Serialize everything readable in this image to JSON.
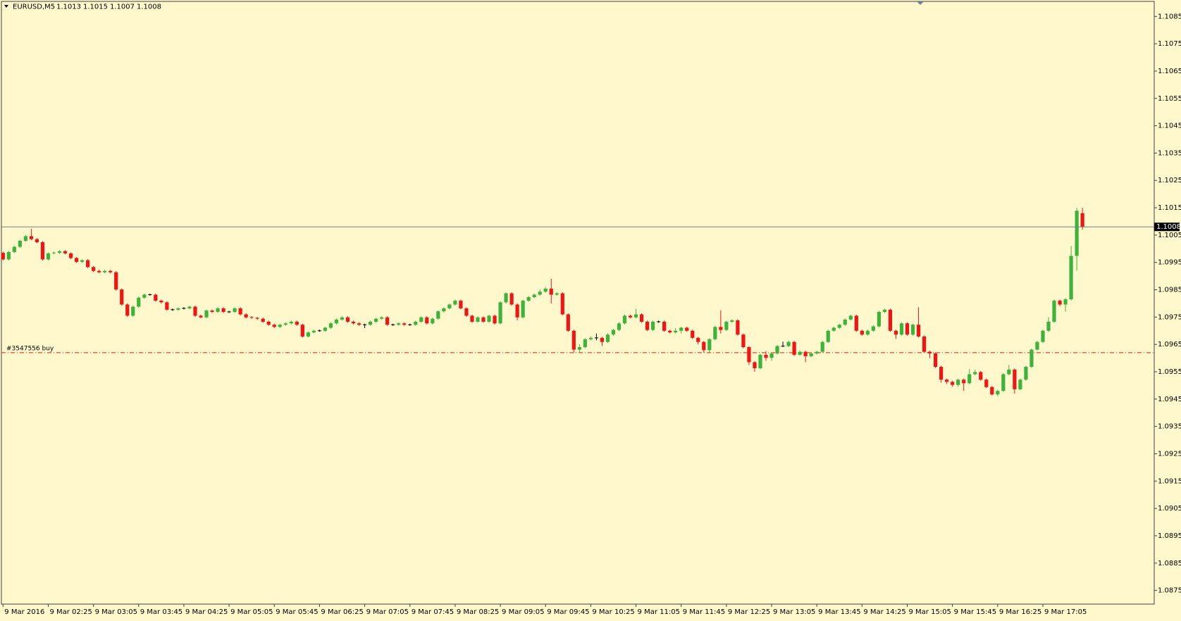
{
  "chart_data": {
    "type": "candlestick",
    "symbol": "EURUSD,M5",
    "up_color": "#3cb43c",
    "down_color": "#f01414",
    "background": "#fff8cc",
    "ylim": [
      1.087,
      1.1091
    ],
    "yticks": [
      1.0875,
      1.0885,
      1.0895,
      1.0905,
      1.0915,
      1.0925,
      1.0935,
      1.0945,
      1.0955,
      1.0965,
      1.0975,
      1.0985,
      1.0995,
      1.1005,
      1.1015,
      1.1025,
      1.1035,
      1.1045,
      1.1055,
      1.1065,
      1.1075,
      1.1085
    ],
    "current_price": 1.1008,
    "order": {
      "label": "#3547556 buy",
      "price": 1.0962
    },
    "categories": [
      "9 Mar 2016",
      null,
      null,
      null,
      null,
      null,
      null,
      null,
      "9 Mar 02:25",
      null,
      null,
      null,
      null,
      null,
      null,
      null,
      "9 Mar 03:05",
      null,
      null,
      null,
      null,
      null,
      null,
      null,
      "9 Mar 03:45",
      null,
      null,
      null,
      null,
      null,
      null,
      null,
      "9 Mar 04:25",
      null,
      null,
      null,
      null,
      null,
      null,
      null,
      "9 Mar 05:05",
      null,
      null,
      null,
      null,
      null,
      null,
      null,
      "9 Mar 05:45",
      null,
      null,
      null,
      null,
      null,
      null,
      null,
      "9 Mar 06:25",
      null,
      null,
      null,
      null,
      null,
      null,
      null,
      "9 Mar 07:05",
      null,
      null,
      null,
      null,
      null,
      null,
      null,
      "9 Mar 07:45",
      null,
      null,
      null,
      null,
      null,
      null,
      null,
      "9 Mar 08:25",
      null,
      null,
      null,
      null,
      null,
      null,
      null,
      "9 Mar 09:05",
      null,
      null,
      null,
      null,
      null,
      null,
      null,
      "9 Mar 09:45",
      null,
      null,
      null,
      null,
      null,
      null,
      null,
      "9 Mar 10:25",
      null,
      null,
      null,
      null,
      null,
      null,
      null,
      "9 Mar 11:05",
      null,
      null,
      null,
      null,
      null,
      null,
      null,
      "9 Mar 11:45",
      null,
      null,
      null,
      null,
      null,
      null,
      null,
      "9 Mar 12:25",
      null,
      null,
      null,
      null,
      null,
      null,
      null,
      "9 Mar 13:05",
      null,
      null,
      null,
      null,
      null,
      null,
      null,
      "9 Mar 13:45",
      null,
      null,
      null,
      null,
      null,
      null,
      null,
      "9 Mar 14:25",
      null,
      null,
      null,
      null,
      null,
      null,
      null,
      "9 Mar 15:05",
      null,
      null,
      null,
      null,
      null,
      null,
      null,
      "9 Mar 15:45",
      null,
      null,
      null,
      null,
      null,
      null,
      null,
      "9 Mar 16:25",
      null,
      null,
      null,
      null,
      null,
      null,
      null,
      "9 Mar 17:05",
      null,
      null,
      null,
      null,
      null,
      null,
      null
    ],
    "ohlc": [
      [
        1.09985,
        1.09989,
        1.09957,
        1.09961
      ],
      [
        1.09961,
        1.09992,
        1.09957,
        1.09988
      ],
      [
        1.09988,
        1.10011,
        1.09984,
        1.10007
      ],
      [
        1.10007,
        1.10033,
        1.10003,
        1.10029
      ],
      [
        1.10029,
        1.1005,
        1.10025,
        1.10046
      ],
      [
        1.10046,
        1.10073,
        1.10031,
        1.10035
      ],
      [
        1.10035,
        1.10039,
        1.1002,
        1.10024
      ],
      [
        1.10024,
        1.10028,
        1.09957,
        1.09961
      ],
      [
        1.09961,
        1.09987,
        1.09957,
        1.09983
      ],
      [
        1.09983,
        1.09989,
        1.09979,
        1.09985
      ],
      [
        1.09985,
        1.09995,
        1.09981,
        1.09991
      ],
      [
        1.09991,
        1.09995,
        1.09979,
        1.09983
      ],
      [
        1.09983,
        1.09987,
        1.09962,
        1.09966
      ],
      [
        1.09966,
        1.0997,
        1.09948,
        1.09952
      ],
      [
        1.09952,
        1.09962,
        1.09948,
        1.09958
      ],
      [
        1.09958,
        1.09962,
        1.09929,
        1.09933
      ],
      [
        1.09933,
        1.09937,
        1.09915,
        1.09919
      ],
      [
        1.09919,
        1.09923,
        1.0991,
        1.09914
      ],
      [
        1.09914,
        1.09923,
        1.0991,
        1.09919
      ],
      [
        1.09919,
        1.09923,
        1.0991,
        1.09914
      ],
      [
        1.09914,
        1.09918,
        1.09847,
        1.09851
      ],
      [
        1.09851,
        1.09855,
        1.09792,
        1.09796
      ],
      [
        1.09796,
        1.098,
        1.09751,
        1.09755
      ],
      [
        1.09755,
        1.09792,
        1.09751,
        1.09788
      ],
      [
        1.09788,
        1.09825,
        1.09784,
        1.09821
      ],
      [
        1.09821,
        1.09836,
        1.09817,
        1.09832
      ],
      [
        1.09832,
        1.09836,
        1.09828,
        1.09832
      ],
      [
        1.09832,
        1.09836,
        1.09806,
        1.0981
      ],
      [
        1.0981,
        1.09814,
        1.098,
        1.09804
      ],
      [
        1.09804,
        1.09808,
        1.09773,
        1.09777
      ],
      [
        1.09777,
        1.09781,
        1.09773,
        1.09777
      ],
      [
        1.09777,
        1.09786,
        1.09773,
        1.09782
      ],
      [
        1.09782,
        1.09786,
        1.09778,
        1.09782
      ],
      [
        1.09782,
        1.09792,
        1.09778,
        1.09788
      ],
      [
        1.09788,
        1.09792,
        1.09751,
        1.09755
      ],
      [
        1.09755,
        1.09759,
        1.09745,
        1.09749
      ],
      [
        1.09749,
        1.09778,
        1.09745,
        1.09774
      ],
      [
        1.09774,
        1.09778,
        1.09765,
        1.09769
      ],
      [
        1.09769,
        1.09786,
        1.09765,
        1.09782
      ],
      [
        1.09782,
        1.09786,
        1.09765,
        1.09769
      ],
      [
        1.09769,
        1.09773,
        1.09765,
        1.09769
      ],
      [
        1.09769,
        1.09786,
        1.09765,
        1.09782
      ],
      [
        1.09782,
        1.09786,
        1.09756,
        1.0976
      ],
      [
        1.0976,
        1.09764,
        1.09745,
        1.09749
      ],
      [
        1.09749,
        1.09753,
        1.09743,
        1.09747
      ],
      [
        1.09747,
        1.09751,
        1.0974,
        1.09744
      ],
      [
        1.09744,
        1.09748,
        1.09729,
        1.09733
      ],
      [
        1.09733,
        1.09737,
        1.09718,
        1.09722
      ],
      [
        1.09722,
        1.09726,
        1.0971,
        1.09714
      ],
      [
        1.09714,
        1.09726,
        1.0971,
        1.09722
      ],
      [
        1.09722,
        1.09731,
        1.09718,
        1.09727
      ],
      [
        1.09727,
        1.09737,
        1.09723,
        1.09733
      ],
      [
        1.09733,
        1.09737,
        1.09718,
        1.09722
      ],
      [
        1.09722,
        1.09726,
        1.09675,
        1.09679
      ],
      [
        1.09679,
        1.09698,
        1.09675,
        1.09694
      ],
      [
        1.09694,
        1.09704,
        1.0969,
        1.097
      ],
      [
        1.097,
        1.09704,
        1.09696,
        1.097
      ],
      [
        1.097,
        1.09715,
        1.09696,
        1.09711
      ],
      [
        1.09711,
        1.09731,
        1.09707,
        1.09727
      ],
      [
        1.09727,
        1.09745,
        1.09723,
        1.09741
      ],
      [
        1.09741,
        1.09753,
        1.09737,
        1.09749
      ],
      [
        1.09749,
        1.09753,
        1.09729,
        1.09733
      ],
      [
        1.09733,
        1.09737,
        1.09723,
        1.09727
      ],
      [
        1.09727,
        1.09731,
        1.09718,
        1.09722
      ],
      [
        1.09722,
        1.09726,
        1.0971,
        1.09722
      ],
      [
        1.09722,
        1.09737,
        1.09718,
        1.09733
      ],
      [
        1.09733,
        1.09748,
        1.09729,
        1.09744
      ],
      [
        1.09744,
        1.09753,
        1.0974,
        1.09749
      ],
      [
        1.09749,
        1.09753,
        1.09718,
        1.09722
      ],
      [
        1.09722,
        1.09726,
        1.09718,
        1.09722
      ],
      [
        1.09722,
        1.09731,
        1.09718,
        1.09727
      ],
      [
        1.09727,
        1.09731,
        1.09718,
        1.09722
      ],
      [
        1.09722,
        1.09726,
        1.09718,
        1.09722
      ],
      [
        1.09722,
        1.09737,
        1.09718,
        1.09733
      ],
      [
        1.09733,
        1.09753,
        1.09729,
        1.09749
      ],
      [
        1.09749,
        1.09753,
        1.09723,
        1.09727
      ],
      [
        1.09727,
        1.09748,
        1.09723,
        1.09744
      ],
      [
        1.09744,
        1.09775,
        1.0974,
        1.09771
      ],
      [
        1.09771,
        1.09786,
        1.09767,
        1.09782
      ],
      [
        1.09782,
        1.098,
        1.09778,
        1.09796
      ],
      [
        1.09796,
        1.09814,
        1.09792,
        1.0981
      ],
      [
        1.0981,
        1.09814,
        1.09778,
        1.09782
      ],
      [
        1.09782,
        1.09786,
        1.09751,
        1.09755
      ],
      [
        1.09755,
        1.09759,
        1.09729,
        1.09733
      ],
      [
        1.09733,
        1.09753,
        1.09729,
        1.09749
      ],
      [
        1.09749,
        1.09753,
        1.09729,
        1.09733
      ],
      [
        1.09733,
        1.09759,
        1.09729,
        1.09755
      ],
      [
        1.09755,
        1.09759,
        1.09723,
        1.09727
      ],
      [
        1.09727,
        1.09808,
        1.09723,
        1.09804
      ],
      [
        1.09804,
        1.09841,
        1.098,
        1.09837
      ],
      [
        1.09837,
        1.09841,
        1.09792,
        1.09796
      ],
      [
        1.09796,
        1.098,
        1.09738,
        1.09749
      ],
      [
        1.09749,
        1.09814,
        1.09745,
        1.0981
      ],
      [
        1.0981,
        1.09827,
        1.09806,
        1.09823
      ],
      [
        1.09823,
        1.09836,
        1.09819,
        1.09832
      ],
      [
        1.09832,
        1.09852,
        1.09828,
        1.09843
      ],
      [
        1.09843,
        1.0986,
        1.09839,
        1.09854
      ],
      [
        1.09854,
        1.0989,
        1.098,
        1.09832
      ],
      [
        1.09832,
        1.09841,
        1.09828,
        1.09837
      ],
      [
        1.09837,
        1.09841,
        1.09756,
        1.0976
      ],
      [
        1.0976,
        1.09764,
        1.09696,
        1.097
      ],
      [
        1.097,
        1.09704,
        1.0962,
        1.09631
      ],
      [
        1.09631,
        1.09651,
        1.0962,
        1.0964
      ],
      [
        1.0964,
        1.09673,
        1.09636,
        1.09669
      ],
      [
        1.09669,
        1.0968,
        1.09665,
        1.09674
      ],
      [
        1.09674,
        1.0969,
        1.09665,
        1.09674
      ],
      [
        1.09674,
        1.09678,
        1.09645,
        1.09659
      ],
      [
        1.09659,
        1.0969,
        1.09655,
        1.09686
      ],
      [
        1.09686,
        1.09707,
        1.09682,
        1.09703
      ],
      [
        1.09703,
        1.09731,
        1.09699,
        1.09727
      ],
      [
        1.09727,
        1.09759,
        1.09723,
        1.09755
      ],
      [
        1.09755,
        1.09759,
        1.09745,
        1.09749
      ],
      [
        1.09749,
        1.0978,
        1.09745,
        1.0976
      ],
      [
        1.0976,
        1.09764,
        1.09729,
        1.09733
      ],
      [
        1.09733,
        1.09737,
        1.09699,
        1.09703
      ],
      [
        1.09703,
        1.09737,
        1.09699,
        1.09733
      ],
      [
        1.09733,
        1.09737,
        1.09729,
        1.09733
      ],
      [
        1.09733,
        1.09737,
        1.09696,
        1.097
      ],
      [
        1.097,
        1.09704,
        1.0969,
        1.09694
      ],
      [
        1.09694,
        1.0971,
        1.0969,
        1.097
      ],
      [
        1.097,
        1.09715,
        1.0969,
        1.09711
      ],
      [
        1.09711,
        1.09715,
        1.09696,
        1.097
      ],
      [
        1.097,
        1.09704,
        1.0967,
        1.09674
      ],
      [
        1.09674,
        1.09678,
        1.0965,
        1.09659
      ],
      [
        1.09659,
        1.09663,
        1.0962,
        1.09629
      ],
      [
        1.09629,
        1.09673,
        1.0962,
        1.09669
      ],
      [
        1.09669,
        1.09718,
        1.09665,
        1.09714
      ],
      [
        1.09714,
        1.09775,
        1.0969,
        1.09703
      ],
      [
        1.09703,
        1.09737,
        1.09699,
        1.09733
      ],
      [
        1.09733,
        1.09742,
        1.09729,
        1.09738
      ],
      [
        1.09738,
        1.09742,
        1.09682,
        1.09686
      ],
      [
        1.09686,
        1.0969,
        1.09636,
        1.0964
      ],
      [
        1.0964,
        1.09644,
        1.09575,
        1.09585
      ],
      [
        1.09585,
        1.09589,
        1.0955,
        1.09563
      ],
      [
        1.09563,
        1.09616,
        1.09559,
        1.09612
      ],
      [
        1.09612,
        1.09625,
        1.0959,
        1.09601
      ],
      [
        1.09601,
        1.09621,
        1.0959,
        1.09617
      ],
      [
        1.09617,
        1.09648,
        1.09613,
        1.09644
      ],
      [
        1.09644,
        1.0966,
        1.0964,
        1.09644
      ],
      [
        1.09644,
        1.09663,
        1.0964,
        1.09659
      ],
      [
        1.09659,
        1.09663,
        1.09608,
        1.09612
      ],
      [
        1.09612,
        1.09627,
        1.09608,
        1.09623
      ],
      [
        1.09623,
        1.09627,
        1.09585,
        1.09607
      ],
      [
        1.09607,
        1.09621,
        1.09603,
        1.09617
      ],
      [
        1.09617,
        1.09627,
        1.09613,
        1.09623
      ],
      [
        1.09623,
        1.09663,
        1.09619,
        1.09659
      ],
      [
        1.09659,
        1.09704,
        1.09655,
        1.097
      ],
      [
        1.097,
        1.09715,
        1.09696,
        1.09711
      ],
      [
        1.09711,
        1.09726,
        1.09707,
        1.09722
      ],
      [
        1.09722,
        1.09745,
        1.09718,
        1.09741
      ],
      [
        1.09741,
        1.09759,
        1.09737,
        1.09755
      ],
      [
        1.09755,
        1.09759,
        1.09696,
        1.097
      ],
      [
        1.097,
        1.09704,
        1.09682,
        1.09686
      ],
      [
        1.09686,
        1.09704,
        1.09682,
        1.097
      ],
      [
        1.097,
        1.0972,
        1.09696,
        1.09716
      ],
      [
        1.09716,
        1.09773,
        1.09712,
        1.09769
      ],
      [
        1.09769,
        1.09781,
        1.09765,
        1.09777
      ],
      [
        1.09777,
        1.09781,
        1.09696,
        1.097
      ],
      [
        1.097,
        1.09704,
        1.0967,
        1.09686
      ],
      [
        1.09686,
        1.09731,
        1.09682,
        1.09727
      ],
      [
        1.09727,
        1.09731,
        1.09682,
        1.09686
      ],
      [
        1.09686,
        1.09726,
        1.09682,
        1.09722
      ],
      [
        1.09722,
        1.09786,
        1.09675,
        1.09679
      ],
      [
        1.09679,
        1.09683,
        1.09619,
        1.09623
      ],
      [
        1.09623,
        1.09627,
        1.096,
        1.09617
      ],
      [
        1.09617,
        1.09621,
        1.09564,
        1.09568
      ],
      [
        1.09568,
        1.09572,
        1.0951,
        1.09521
      ],
      [
        1.09521,
        1.09525,
        1.09505,
        1.09513
      ],
      [
        1.09513,
        1.09517,
        1.09495,
        1.09502
      ],
      [
        1.09502,
        1.09525,
        1.09495,
        1.09521
      ],
      [
        1.09521,
        1.09525,
        1.0948,
        1.09508
      ],
      [
        1.09508,
        1.0956,
        1.09504,
        1.09541
      ],
      [
        1.09541,
        1.09558,
        1.09537,
        1.09549
      ],
      [
        1.09549,
        1.09553,
        1.09517,
        1.09521
      ],
      [
        1.09521,
        1.09525,
        1.0949,
        1.09494
      ],
      [
        1.09494,
        1.09498,
        1.09463,
        1.09467
      ],
      [
        1.09467,
        1.09484,
        1.0946,
        1.0948
      ],
      [
        1.0948,
        1.09545,
        1.09476,
        1.09541
      ],
      [
        1.09541,
        1.09575,
        1.09537,
        1.09558
      ],
      [
        1.09558,
        1.09562,
        1.0947,
        1.09486
      ],
      [
        1.09486,
        1.09525,
        1.09482,
        1.09521
      ],
      [
        1.09521,
        1.09572,
        1.09517,
        1.09568
      ],
      [
        1.09568,
        1.09635,
        1.09564,
        1.09631
      ],
      [
        1.09631,
        1.09663,
        1.09627,
        1.09659
      ],
      [
        1.09659,
        1.09704,
        1.09655,
        1.097
      ],
      [
        1.097,
        1.0975,
        1.09696,
        1.09733
      ],
      [
        1.09733,
        1.09814,
        1.09729,
        1.0981
      ],
      [
        1.0981,
        1.09814,
        1.0979,
        1.09796
      ],
      [
        1.09796,
        1.09819,
        1.0977,
        1.09815
      ],
      [
        1.09815,
        1.1001,
        1.09811,
        1.09974
      ],
      [
        1.09974,
        1.1015,
        1.0992,
        1.10139
      ],
      [
        1.1013,
        1.1015,
        1.1007,
        1.1008
      ]
    ]
  }
}
